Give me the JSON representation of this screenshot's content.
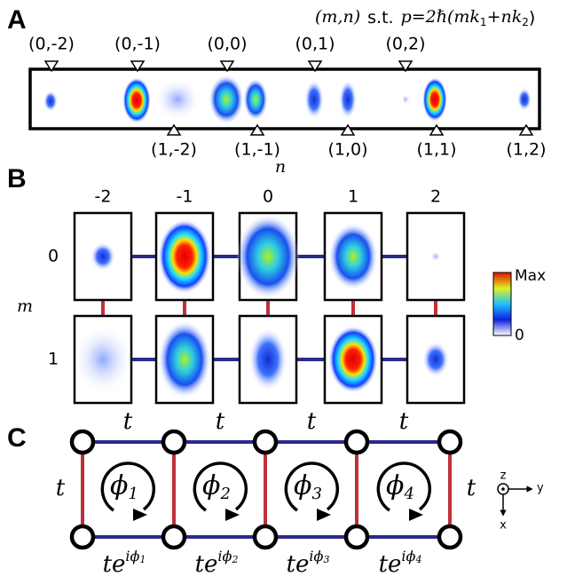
{
  "panel_a": {
    "letter": "A",
    "formula": {
      "mn": "(m,n)",
      "st": "s.t.",
      "p": "p=2ℏ(mk",
      "sub1": "1",
      "mid": "+nk",
      "sub2": "2",
      "end": ")"
    },
    "top_labels": [
      "(0,-2)",
      "(0,-1)",
      "(0,0)",
      "(0,1)",
      "(0,2)"
    ],
    "bottom_labels": [
      "(1,-2)",
      "(1,-1)",
      "(1,0)",
      "(1,1)",
      "(1,2)"
    ]
  },
  "panel_b": {
    "letter": "B",
    "col_axis": "n",
    "row_axis": "m",
    "columns": [
      -2,
      -1,
      0,
      1,
      2
    ],
    "rows": [
      0,
      1
    ],
    "colorbar": {
      "max": "Max",
      "min": "0"
    }
  },
  "panel_c": {
    "letter": "C",
    "top_hopping": [
      "t",
      "t",
      "t",
      "t"
    ],
    "left_hopping": "t",
    "right_hopping": "t",
    "fluxes": [
      {
        "sym": "ϕ",
        "sub": "1"
      },
      {
        "sym": "ϕ",
        "sub": "2"
      },
      {
        "sym": "ϕ",
        "sub": "3"
      },
      {
        "sym": "ϕ",
        "sub": "4"
      }
    ],
    "bottom_hopping": [
      {
        "base": "te",
        "sup": "iϕ",
        "sub": "1"
      },
      {
        "base": "te",
        "sup": "iϕ",
        "sub": "2"
      },
      {
        "base": "te",
        "sup": "iϕ",
        "sub": "3"
      },
      {
        "base": "te",
        "sup": "iϕ",
        "sub": "4"
      }
    ],
    "axes": {
      "z": "z",
      "y": "y",
      "x": "x"
    }
  }
}
